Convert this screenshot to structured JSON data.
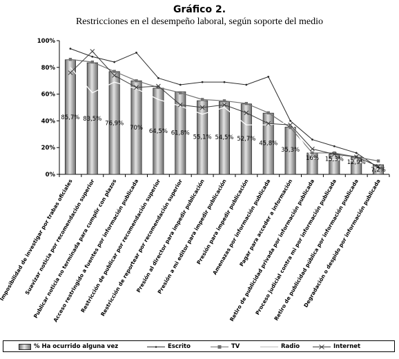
{
  "header": {
    "title": "Gráfico 2.",
    "subtitle": "Restricciones en el desempeño laboral, según soporte del medio"
  },
  "colors": {
    "bar_fill_dark": "#6e6e6e",
    "bar_fill_light": "#e2e2e2",
    "escrito": "#2a2a2a",
    "tv": "#707070",
    "radio": "#ffffff",
    "internet": "#3a3a3a",
    "axis": "#000000"
  },
  "chart_data": {
    "type": "bar",
    "title": "Gráfico 2.",
    "subtitle": "Restricciones en el desempeño laboral, según soporte del medio",
    "xlabel": "",
    "ylabel": "",
    "ylim": [
      0,
      100
    ],
    "yticks": [
      "0%",
      "20%",
      "40%",
      "60%",
      "80%",
      "100%"
    ],
    "grid": false,
    "legend_position": "bottom",
    "categories": [
      "Imposibilidad de investigar por trabas oficiales",
      "Suavizar noticia por recomendación superior",
      "Publicar noticia no terminada para cumplir con plazos",
      "Acceso restringido a fuentes por información publicada",
      "Restricción de publicar por recomendación superior",
      "Restricción de reportear por recomendación superior",
      "Presión al director para impedir publicación",
      "Presión a mi editor para impedir publicación",
      "Presión para impedir publicación",
      "Amenazas por información publicada",
      "Pagar para acceder a información",
      "Retiro de publicidad privada por información publicada",
      "Proceso judicial contra mi por información publicada",
      "Retiro de publicidad pública por información publicada",
      "Degradación o despido por información publicada"
    ],
    "data_labels": [
      "85,7%",
      "83,5%",
      "76,9%",
      "70%",
      "64,5%",
      "61,8%",
      "55,1%",
      "54,5%",
      "52,7%",
      "45,8%",
      "35,3%",
      "16%",
      "15,3%",
      "12,9%",
      "7,2%"
    ],
    "series": [
      {
        "name": "% Ha ocurrido alguna vez",
        "kind": "bar",
        "values": [
          85.7,
          83.5,
          76.9,
          70,
          64.5,
          61.8,
          55.1,
          54.5,
          52.7,
          45.8,
          35.3,
          16,
          15.3,
          12.9,
          7.2
        ]
      },
      {
        "name": "Escrito",
        "kind": "line",
        "marker": "dot",
        "values": [
          94,
          88,
          84,
          91,
          72,
          67,
          69,
          69,
          67,
          73,
          40,
          26,
          21,
          16,
          5
        ]
      },
      {
        "name": "TV",
        "kind": "line",
        "marker": "square",
        "values": [
          86,
          84,
          77,
          70,
          65,
          61,
          56,
          55,
          53,
          46,
          35,
          16,
          16,
          13,
          10
        ]
      },
      {
        "name": "Radio",
        "kind": "line",
        "marker": "none",
        "values": [
          80,
          61,
          69,
          64,
          56,
          51,
          45,
          50,
          37,
          37,
          39,
          12,
          11,
          10,
          4
        ]
      },
      {
        "name": "Internet",
        "kind": "line",
        "marker": "x",
        "values": [
          76,
          92,
          74,
          65,
          66,
          52,
          50,
          52,
          46,
          38,
          37,
          19,
          15,
          13,
          6
        ]
      }
    ]
  }
}
